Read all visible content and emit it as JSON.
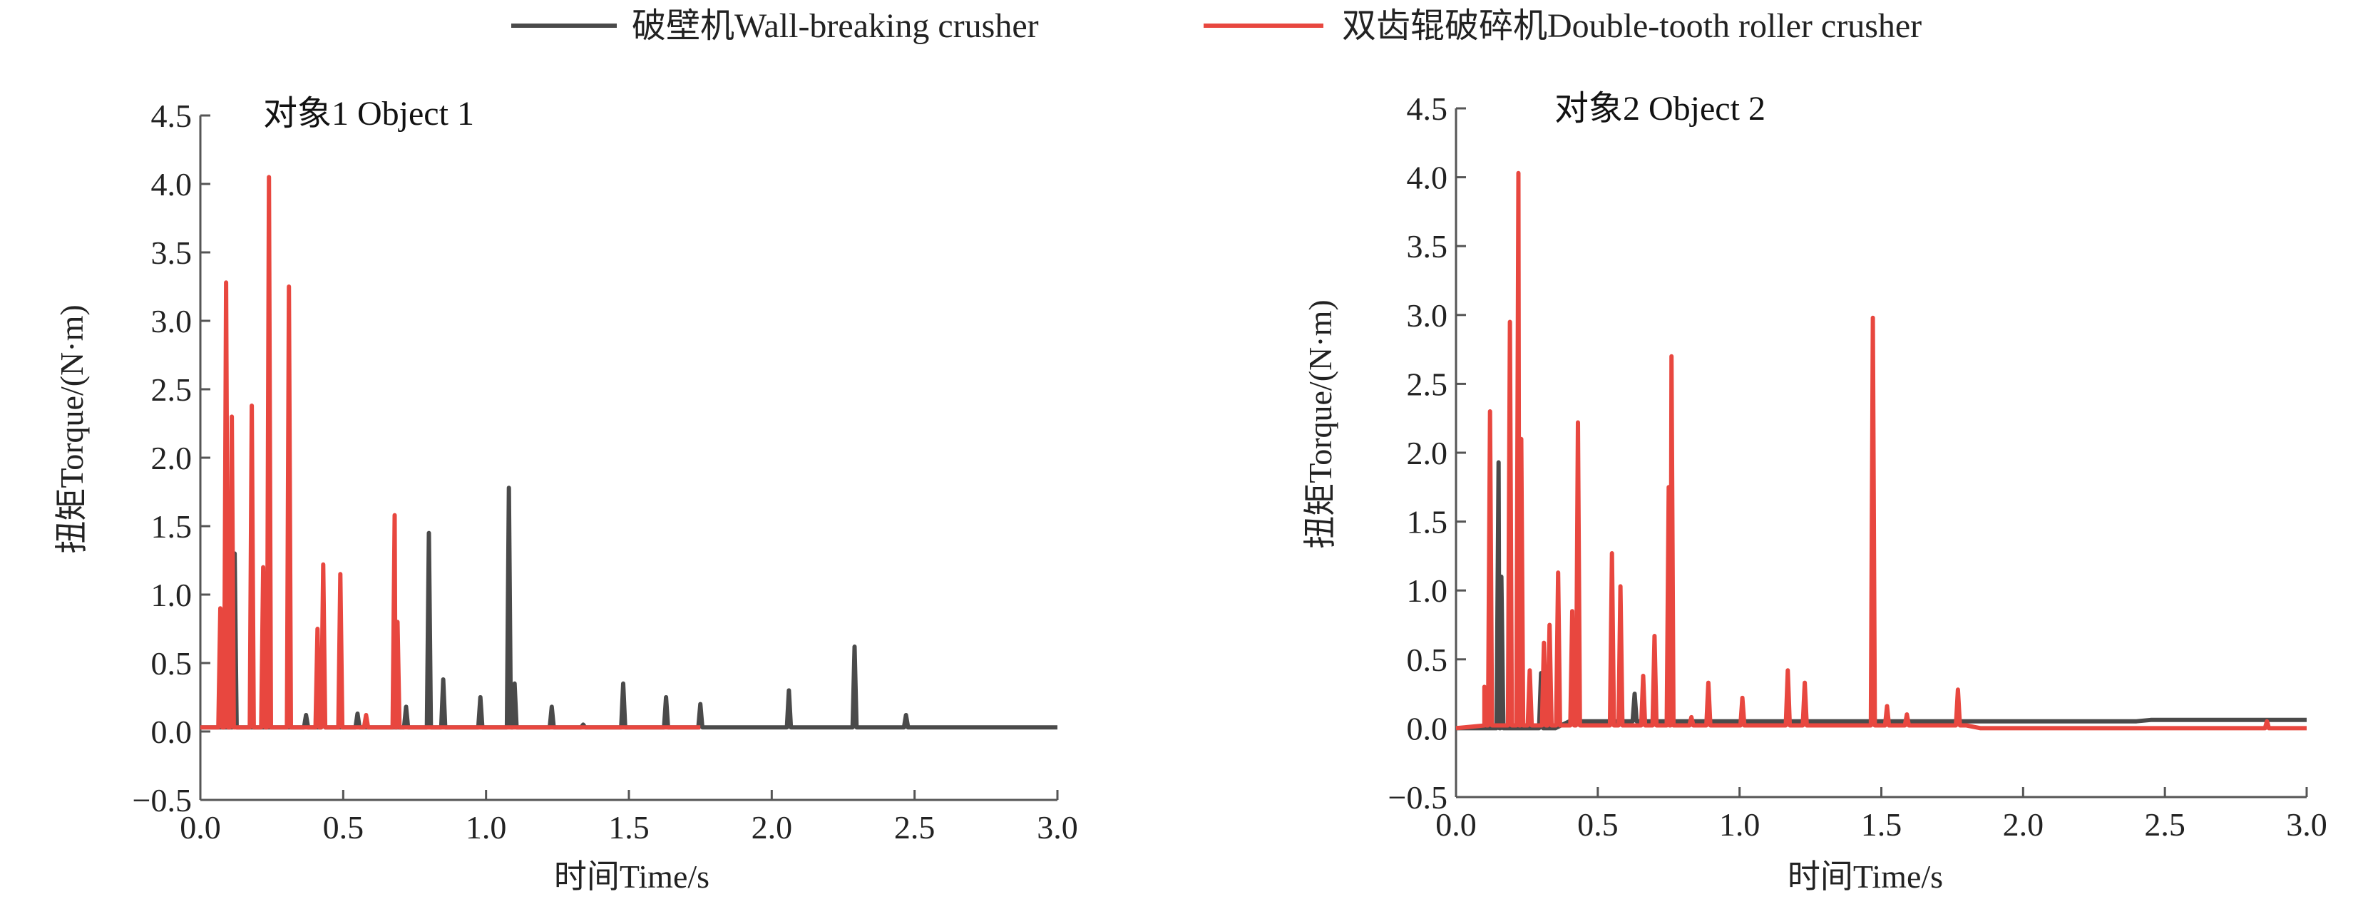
{
  "legend": [
    {
      "label": "破壁机Wall-breaking crusher",
      "color": "#4a4a4a"
    },
    {
      "label": "双齿辊破碎机Double-tooth roller crusher",
      "color": "#e8473f"
    }
  ],
  "chart_data": [
    {
      "type": "line",
      "title": "对象1 Object 1",
      "xlabel": "时间Time/s",
      "ylabel": "扭矩Torque/(N·m)",
      "xlim": [
        0,
        3.0
      ],
      "ylim": [
        -0.5,
        4.5
      ],
      "xticks": [
        "0.0",
        "0.5",
        "1.0",
        "1.5",
        "2.0",
        "2.5",
        "3.0"
      ],
      "yticks": [
        "−0.5",
        "0.0",
        "0.5",
        "1.0",
        "1.5",
        "2.0",
        "2.5",
        "3.0",
        "3.5",
        "4.0",
        "4.5"
      ],
      "series": [
        {
          "name": "破壁机Wall-breaking crusher",
          "baseline": [
            [
              0,
              0.03
            ],
            [
              3.0,
              0.03
            ]
          ],
          "peaks": [
            [
              0.12,
              1.3
            ],
            [
              0.37,
              0.12
            ],
            [
              0.43,
              0.15
            ],
            [
              0.55,
              0.13
            ],
            [
              0.72,
              0.18
            ],
            [
              0.8,
              1.45
            ],
            [
              0.85,
              0.38
            ],
            [
              0.98,
              0.25
            ],
            [
              1.08,
              1.78
            ],
            [
              1.1,
              0.35
            ],
            [
              1.23,
              0.18
            ],
            [
              1.34,
              0.05
            ],
            [
              1.48,
              0.35
            ],
            [
              1.63,
              0.25
            ],
            [
              1.75,
              0.2
            ],
            [
              2.06,
              0.3
            ],
            [
              2.29,
              0.62
            ],
            [
              2.47,
              0.12
            ]
          ]
        },
        {
          "name": "双齿辊破碎机Double-tooth roller crusher",
          "baseline": [
            [
              0,
              0.03
            ],
            [
              1.75,
              0.03
            ]
          ],
          "peaks": [
            [
              0.07,
              0.9
            ],
            [
              0.09,
              3.28
            ],
            [
              0.11,
              2.3
            ],
            [
              0.18,
              2.38
            ],
            [
              0.22,
              1.2
            ],
            [
              0.24,
              4.05
            ],
            [
              0.31,
              3.25
            ],
            [
              0.41,
              0.75
            ],
            [
              0.43,
              1.22
            ],
            [
              0.49,
              1.15
            ],
            [
              0.58,
              0.12
            ],
            [
              0.68,
              1.58
            ],
            [
              0.69,
              0.8
            ]
          ]
        }
      ]
    },
    {
      "type": "line",
      "title": "对象2 Object 2",
      "xlabel": "时间Time/s",
      "ylabel": "扭矩Torque/(N·m)",
      "xlim": [
        0,
        3.0
      ],
      "ylim": [
        -0.5,
        4.5
      ],
      "xticks": [
        "0.0",
        "0.5",
        "1.0",
        "1.5",
        "2.0",
        "2.5",
        "3.0"
      ],
      "yticks": [
        "−0.5",
        "0.0",
        "0.5",
        "1.0",
        "1.5",
        "2.0",
        "2.5",
        "3.0",
        "3.5",
        "4.0",
        "4.5"
      ],
      "series": [
        {
          "name": "破壁机Wall-breaking crusher",
          "baseline": [
            [
              0,
              0.0
            ],
            [
              0.35,
              0.0
            ],
            [
              0.4,
              0.05
            ],
            [
              2.4,
              0.05
            ],
            [
              2.45,
              0.06
            ],
            [
              3.0,
              0.06
            ]
          ],
          "peaks": [
            [
              0.15,
              1.93
            ],
            [
              0.16,
              1.1
            ],
            [
              0.3,
              0.4
            ],
            [
              0.63,
              0.25
            ]
          ]
        },
        {
          "name": "双齿辊破碎机Double-tooth roller crusher",
          "baseline": [
            [
              0,
              0.0
            ],
            [
              0.1,
              0.02
            ],
            [
              1.8,
              0.02
            ],
            [
              1.85,
              0.0
            ],
            [
              3.0,
              0.0
            ]
          ],
          "peaks": [
            [
              0.1,
              0.3
            ],
            [
              0.12,
              2.3
            ],
            [
              0.19,
              2.95
            ],
            [
              0.22,
              4.03
            ],
            [
              0.23,
              2.1
            ],
            [
              0.26,
              0.42
            ],
            [
              0.31,
              0.62
            ],
            [
              0.33,
              0.75
            ],
            [
              0.36,
              1.13
            ],
            [
              0.41,
              0.85
            ],
            [
              0.43,
              2.22
            ],
            [
              0.55,
              1.27
            ],
            [
              0.58,
              1.03
            ],
            [
              0.66,
              0.38
            ],
            [
              0.7,
              0.67
            ],
            [
              0.75,
              1.75
            ],
            [
              0.76,
              2.7
            ],
            [
              0.83,
              0.08
            ],
            [
              0.89,
              0.33
            ],
            [
              1.01,
              0.22
            ],
            [
              1.17,
              0.42
            ],
            [
              1.23,
              0.33
            ],
            [
              1.47,
              2.98
            ],
            [
              1.52,
              0.16
            ],
            [
              1.59,
              0.1
            ],
            [
              1.77,
              0.28
            ],
            [
              2.86,
              0.05
            ]
          ]
        }
      ]
    }
  ]
}
